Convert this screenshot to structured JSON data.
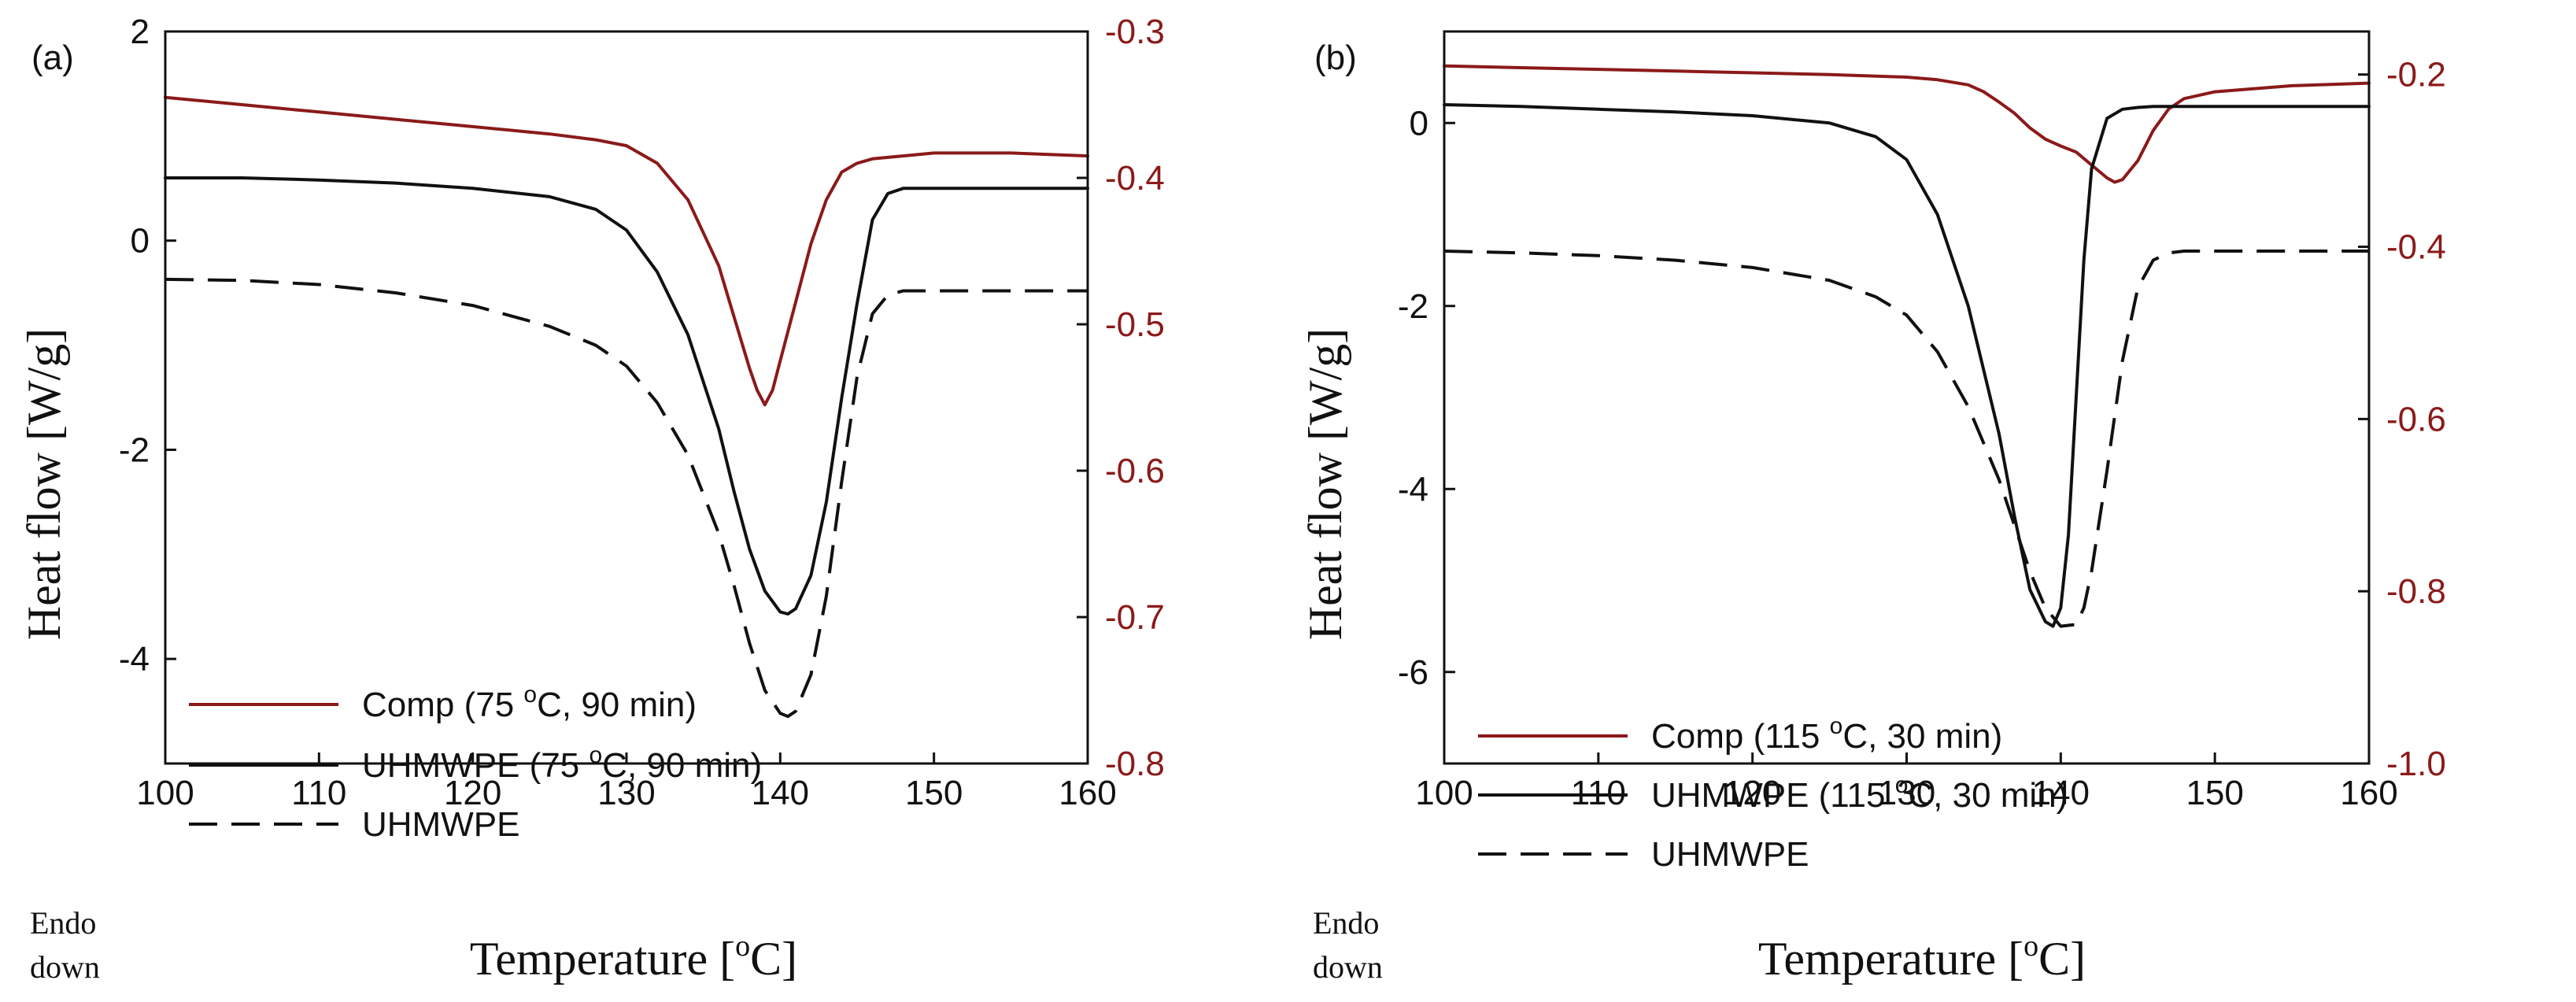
{
  "chart_data": [
    {
      "type": "line",
      "panel_label": "(a)",
      "xlabel": "Temperature [",
      "xlabel_sup": "o",
      "xlabel_end": "C]",
      "ylabel": "Heat flow [W/g]",
      "xlim": [
        100,
        160
      ],
      "ylim_left": [
        -5,
        2
      ],
      "ylim_right": [
        -0.8,
        -0.3
      ],
      "x_ticks": [
        100,
        110,
        120,
        130,
        140,
        150,
        160
      ],
      "y_ticks_left": [
        -4,
        -2,
        0,
        2
      ],
      "y_ticks_right": [
        -0.8,
        -0.7,
        -0.6,
        -0.5,
        -0.4,
        -0.3
      ],
      "endo_label": [
        "Endo",
        "down"
      ],
      "legend_position": "bottom-left",
      "colors": {
        "comp": "#8b1a1a",
        "uhmwpe_treated": "#111111",
        "uhmwpe": "#111111"
      },
      "series": [
        {
          "name": "Comp (75 °C, 90 min)",
          "legend_pre": "Comp (75 ",
          "legend_sup": "o",
          "legend_post": "C, 90 min)",
          "axis": "right",
          "style": "solid",
          "color_key": "comp",
          "x": [
            100,
            105,
            110,
            115,
            120,
            125,
            128,
            130,
            132,
            134,
            136,
            137,
            138,
            138.5,
            139,
            139.5,
            140,
            141,
            142,
            143,
            144,
            145,
            146,
            148,
            150,
            155,
            160
          ],
          "y": [
            -0.345,
            -0.35,
            -0.355,
            -0.36,
            -0.365,
            -0.37,
            -0.374,
            -0.378,
            -0.39,
            -0.415,
            -0.46,
            -0.495,
            -0.53,
            -0.545,
            -0.555,
            -0.545,
            -0.525,
            -0.485,
            -0.445,
            -0.415,
            -0.396,
            -0.39,
            -0.387,
            -0.385,
            -0.383,
            -0.383,
            -0.385
          ]
        },
        {
          "name": "UHMWPE (75 °C, 90 min)",
          "legend_pre": "UHMWPE (75 ",
          "legend_sup": "o",
          "legend_post": "C, 90 min)",
          "axis": "left",
          "style": "solid",
          "color_key": "uhmwpe_treated",
          "x": [
            100,
            105,
            110,
            115,
            120,
            125,
            128,
            130,
            132,
            134,
            136,
            137,
            138,
            139,
            140,
            140.5,
            141,
            142,
            143,
            144,
            145,
            146,
            147,
            148,
            150,
            155,
            160
          ],
          "y": [
            0.6,
            0.6,
            0.58,
            0.55,
            0.5,
            0.42,
            0.3,
            0.1,
            -0.3,
            -0.9,
            -1.8,
            -2.4,
            -2.95,
            -3.35,
            -3.55,
            -3.57,
            -3.52,
            -3.2,
            -2.5,
            -1.5,
            -0.6,
            0.2,
            0.45,
            0.5,
            0.5,
            0.5,
            0.5
          ]
        },
        {
          "name": "UHMWPE",
          "legend_pre": "UHMWPE",
          "legend_sup": "",
          "legend_post": "",
          "axis": "left",
          "style": "dashed",
          "color_key": "uhmwpe",
          "x": [
            100,
            105,
            110,
            115,
            120,
            125,
            128,
            130,
            132,
            134,
            136,
            137,
            138,
            139,
            140,
            140.5,
            141,
            142,
            143,
            144,
            145,
            146,
            147,
            148,
            150,
            155,
            160
          ],
          "y": [
            -0.37,
            -0.38,
            -0.42,
            -0.5,
            -0.62,
            -0.82,
            -1.0,
            -1.2,
            -1.55,
            -2.05,
            -2.8,
            -3.3,
            -3.85,
            -4.3,
            -4.52,
            -4.55,
            -4.5,
            -4.15,
            -3.4,
            -2.3,
            -1.3,
            -0.7,
            -0.52,
            -0.48,
            -0.48,
            -0.48,
            -0.48
          ]
        }
      ]
    },
    {
      "type": "line",
      "panel_label": "(b)",
      "xlabel": "Temperature [",
      "xlabel_sup": "o",
      "xlabel_end": "C]",
      "ylabel": "Heat flow [W/g]",
      "xlim": [
        100,
        160
      ],
      "ylim_left": [
        -7,
        1
      ],
      "ylim_right": [
        -1.0,
        -0.15
      ],
      "x_ticks": [
        100,
        110,
        120,
        130,
        140,
        150,
        160
      ],
      "y_ticks_left": [
        -6,
        -4,
        -2,
        0
      ],
      "y_ticks_right": [
        -1.0,
        -0.8,
        -0.6,
        -0.4,
        -0.2
      ],
      "endo_label": [
        "Endo",
        "down"
      ],
      "legend_position": "bottom-left",
      "colors": {
        "comp": "#8b1a1a",
        "uhmwpe_treated": "#111111",
        "uhmwpe": "#111111"
      },
      "series": [
        {
          "name": "Comp (115 °C, 30 min)",
          "legend_pre": "Comp (115 ",
          "legend_sup": "o",
          "legend_post": "C, 30 min)",
          "axis": "right",
          "style": "solid",
          "color_key": "comp",
          "x": [
            100,
            105,
            110,
            115,
            120,
            125,
            130,
            132,
            134,
            135,
            136,
            137,
            138,
            139,
            140,
            141,
            142,
            143,
            143.5,
            144,
            145,
            146,
            147,
            148,
            150,
            155,
            160
          ],
          "y": [
            -0.19,
            -0.192,
            -0.194,
            -0.196,
            -0.198,
            -0.2,
            -0.203,
            -0.206,
            -0.212,
            -0.22,
            -0.232,
            -0.245,
            -0.262,
            -0.275,
            -0.283,
            -0.29,
            -0.305,
            -0.32,
            -0.325,
            -0.322,
            -0.3,
            -0.265,
            -0.24,
            -0.228,
            -0.22,
            -0.213,
            -0.21
          ]
        },
        {
          "name": "UHMWPE (115 °C, 30 min)",
          "legend_pre": "UHMWPE (115 ",
          "legend_sup": "o",
          "legend_post": "C, 30 min)",
          "axis": "left",
          "style": "solid",
          "color_key": "uhmwpe_treated",
          "x": [
            100,
            105,
            110,
            115,
            120,
            125,
            128,
            130,
            132,
            134,
            136,
            137,
            138,
            139,
            139.5,
            140,
            140.5,
            141,
            141.5,
            142,
            143,
            144,
            145,
            146,
            148,
            150,
            155,
            160
          ],
          "y": [
            0.2,
            0.18,
            0.15,
            0.12,
            0.08,
            0.0,
            -0.15,
            -0.4,
            -1.0,
            -2.0,
            -3.4,
            -4.3,
            -5.1,
            -5.45,
            -5.5,
            -5.3,
            -4.5,
            -3.0,
            -1.5,
            -0.5,
            0.05,
            0.15,
            0.17,
            0.18,
            0.18,
            0.18,
            0.18,
            0.18
          ]
        },
        {
          "name": "UHMWPE",
          "legend_pre": "UHMWPE",
          "legend_sup": "",
          "legend_post": "",
          "axis": "left",
          "style": "dashed",
          "color_key": "uhmwpe",
          "x": [
            100,
            105,
            110,
            115,
            120,
            125,
            128,
            130,
            132,
            134,
            136,
            137,
            138,
            139,
            140,
            141,
            141.5,
            142,
            143,
            144,
            145,
            146,
            147,
            148,
            150,
            155,
            160
          ],
          "y": [
            -1.4,
            -1.42,
            -1.45,
            -1.5,
            -1.58,
            -1.72,
            -1.9,
            -2.1,
            -2.5,
            -3.1,
            -3.9,
            -4.4,
            -4.9,
            -5.3,
            -5.5,
            -5.48,
            -5.3,
            -4.9,
            -3.8,
            -2.6,
            -1.8,
            -1.5,
            -1.42,
            -1.4,
            -1.4,
            -1.4,
            -1.4
          ]
        }
      ]
    }
  ]
}
